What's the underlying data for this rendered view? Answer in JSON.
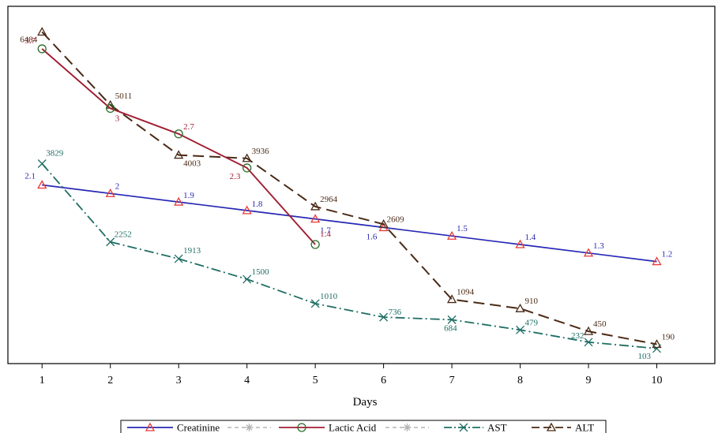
{
  "chart_data": {
    "type": "line",
    "xlabel": "Days",
    "x": [
      1,
      2,
      3,
      4,
      5,
      6,
      7,
      8,
      9,
      10
    ],
    "xlim": [
      0.5,
      10.85
    ],
    "colors": {
      "creatinine": "#2828b4",
      "lactic": "#a01e32",
      "ast": "#1e6e64",
      "alt": "#4a2a16",
      "gray": "#b4b4b4",
      "triangle_marker": "#e83a3a"
    },
    "series": [
      {
        "name": "Creatinine",
        "x": [
          1,
          2,
          3,
          4,
          5,
          6,
          7,
          8,
          9,
          10
        ],
        "values": [
          2.1,
          2,
          1.9,
          1.8,
          1.7,
          1.6,
          1.5,
          1.4,
          1.3,
          1.2
        ],
        "labels": [
          "2.1",
          "2",
          "1.9",
          "1.8",
          "1.7",
          "1.6",
          "1.5",
          "1.4",
          "1.3",
          "1.2"
        ],
        "ylim": [
          0.0,
          4.2
        ]
      },
      {
        "name": "Lactic Acid",
        "x": [
          1,
          2,
          3,
          4,
          5
        ],
        "values": [
          3.7,
          3,
          2.7,
          2.3,
          1.4
        ],
        "labels": [
          "3.7",
          "3",
          "2.7",
          "2.3",
          "1.4"
        ],
        "ylim": [
          0.0,
          4.2
        ]
      },
      {
        "name": "AST",
        "x": [
          1,
          2,
          3,
          4,
          5,
          6,
          7,
          8,
          9,
          10
        ],
        "values": [
          3829,
          2252,
          1913,
          1500,
          1010,
          736,
          684,
          479,
          232,
          103
        ],
        "labels": [
          "3829",
          "2252",
          "1913",
          "1500",
          "1010",
          "736",
          "684",
          "479",
          "232",
          "103"
        ],
        "ylim": [
          -200,
          7000
        ]
      },
      {
        "name": "ALT",
        "x": [
          1,
          2,
          3,
          4,
          5,
          6,
          7,
          8,
          9,
          10
        ],
        "values": [
          6484,
          5011,
          4003,
          3936,
          2964,
          2609,
          1094,
          910,
          450,
          190
        ],
        "labels": [
          "6484",
          "5011",
          "4003",
          "3936",
          "2964",
          "2609",
          "1094",
          "910",
          "450",
          "190"
        ],
        "ylim": [
          -200,
          7000
        ]
      }
    ],
    "legend": {
      "placement": "bottom",
      "entries": [
        {
          "label": "Creatinine",
          "series": "creatinine"
        },
        {
          "label": "",
          "series": "gray"
        },
        {
          "label": "Lactic Acid",
          "series": "lactic"
        },
        {
          "label": "",
          "series": "gray"
        },
        {
          "label": "AST",
          "series": "ast"
        },
        {
          "label": "ALT",
          "series": "alt"
        }
      ]
    },
    "grid": false
  }
}
